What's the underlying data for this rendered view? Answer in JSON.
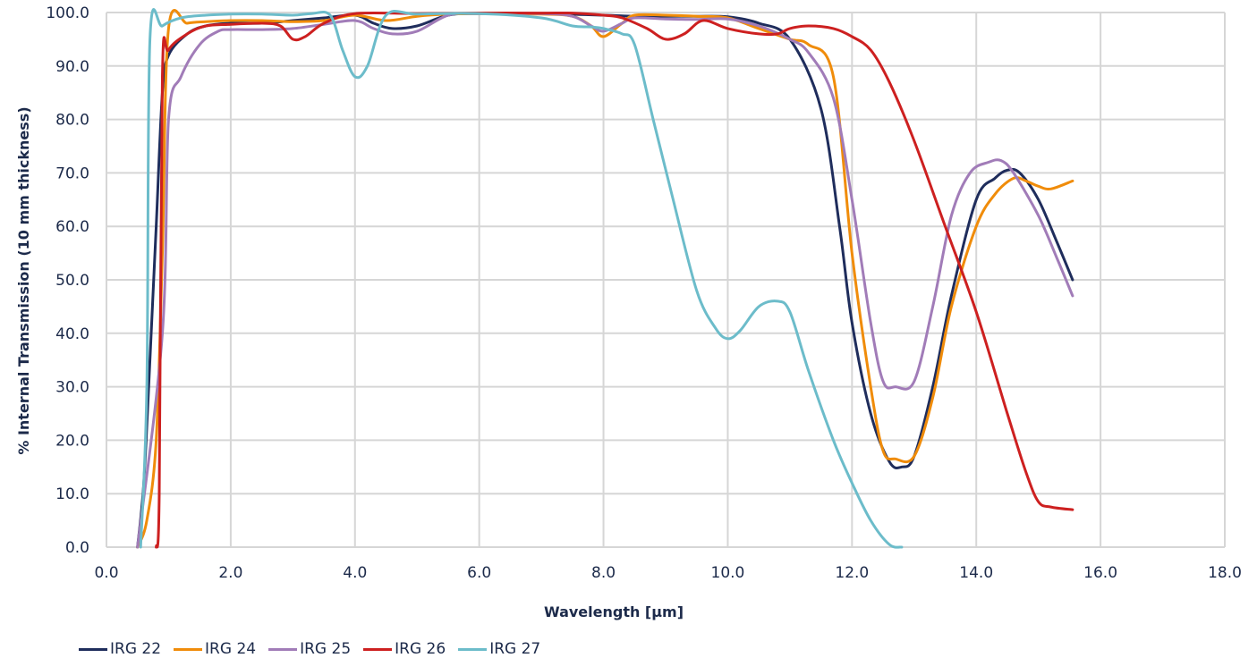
{
  "chart_data": {
    "type": "line",
    "xlabel": "Wavelength [µm]",
    "ylabel": "% Internal Transmission (10 mm thickness)",
    "xlim": [
      0,
      18
    ],
    "ylim": [
      0,
      100
    ],
    "x_ticks": [
      "0.0",
      "2.0",
      "4.0",
      "6.0",
      "8.0",
      "10.0",
      "12.0",
      "14.0",
      "16.0",
      "18.0"
    ],
    "y_ticks": [
      "0.0",
      "10.0",
      "20.0",
      "30.0",
      "40.0",
      "50.0",
      "60.0",
      "70.0",
      "80.0",
      "90.0",
      "100.0"
    ],
    "grid": true,
    "legend_position": "bottom-left",
    "series": [
      {
        "name": "IRG 22",
        "color": "#1f2d5c",
        "points": [
          [
            0.5,
            0
          ],
          [
            0.6,
            12
          ],
          [
            0.7,
            35
          ],
          [
            0.8,
            60
          ],
          [
            0.9,
            85
          ],
          [
            1.0,
            92
          ],
          [
            1.3,
            96
          ],
          [
            1.6,
            97.5
          ],
          [
            2.0,
            98
          ],
          [
            2.5,
            98
          ],
          [
            3.0,
            98.5
          ],
          [
            3.5,
            99
          ],
          [
            4.0,
            99.5
          ],
          [
            4.3,
            98
          ],
          [
            4.6,
            97
          ],
          [
            5.0,
            97.5
          ],
          [
            5.5,
            99.5
          ],
          [
            6.0,
            99.8
          ],
          [
            7.0,
            99.8
          ],
          [
            8.0,
            99.5
          ],
          [
            8.5,
            99.3
          ],
          [
            9.0,
            99.3
          ],
          [
            9.5,
            99.3
          ],
          [
            10.0,
            99.2
          ],
          [
            10.5,
            98
          ],
          [
            11.0,
            95
          ],
          [
            11.5,
            82
          ],
          [
            11.8,
            60
          ],
          [
            12.0,
            42
          ],
          [
            12.3,
            25
          ],
          [
            12.6,
            16
          ],
          [
            12.8,
            15
          ],
          [
            13.0,
            17
          ],
          [
            13.3,
            30
          ],
          [
            13.6,
            47
          ],
          [
            14.0,
            65
          ],
          [
            14.3,
            69
          ],
          [
            14.5,
            70.5
          ],
          [
            14.7,
            70
          ],
          [
            15.0,
            65
          ],
          [
            15.3,
            57
          ],
          [
            15.55,
            50
          ]
        ]
      },
      {
        "name": "IRG 24",
        "color": "#f08c0a",
        "points": [
          [
            0.5,
            0
          ],
          [
            0.65,
            5
          ],
          [
            0.8,
            20
          ],
          [
            0.9,
            55
          ],
          [
            1.0,
            97
          ],
          [
            1.3,
            98
          ],
          [
            1.6,
            98.3
          ],
          [
            2.0,
            98.5
          ],
          [
            2.5,
            98.5
          ],
          [
            3.0,
            98.3
          ],
          [
            3.5,
            98.5
          ],
          [
            4.0,
            99.5
          ],
          [
            4.5,
            98.5
          ],
          [
            5.0,
            99.3
          ],
          [
            5.5,
            99.7
          ],
          [
            6.0,
            99.8
          ],
          [
            7.0,
            99.7
          ],
          [
            7.5,
            99.3
          ],
          [
            7.8,
            97.5
          ],
          [
            8.0,
            95.5
          ],
          [
            8.3,
            98
          ],
          [
            8.5,
            99.5
          ],
          [
            9.0,
            99.5
          ],
          [
            9.5,
            99.3
          ],
          [
            10.0,
            99
          ],
          [
            10.5,
            97
          ],
          [
            11.0,
            95
          ],
          [
            11.3,
            94
          ],
          [
            11.7,
            88
          ],
          [
            12.0,
            55
          ],
          [
            12.3,
            30
          ],
          [
            12.5,
            18
          ],
          [
            12.7,
            16.5
          ],
          [
            13.0,
            17
          ],
          [
            13.3,
            28
          ],
          [
            13.6,
            45
          ],
          [
            14.0,
            60
          ],
          [
            14.3,
            66
          ],
          [
            14.6,
            69
          ],
          [
            14.8,
            68.5
          ],
          [
            15.0,
            67.5
          ],
          [
            15.2,
            67
          ],
          [
            15.55,
            68.5
          ]
        ]
      },
      {
        "name": "IRG 25",
        "color": "#a17cb8",
        "points": [
          [
            0.5,
            0
          ],
          [
            0.9,
            40
          ],
          [
            1.0,
            80
          ],
          [
            1.2,
            88
          ],
          [
            1.5,
            94
          ],
          [
            1.8,
            96.5
          ],
          [
            2.0,
            96.8
          ],
          [
            2.5,
            96.8
          ],
          [
            3.0,
            97
          ],
          [
            3.5,
            97.8
          ],
          [
            4.0,
            98.5
          ],
          [
            4.3,
            97
          ],
          [
            4.6,
            96
          ],
          [
            5.0,
            96.5
          ],
          [
            5.5,
            99.5
          ],
          [
            6.0,
            99.8
          ],
          [
            7.0,
            99.8
          ],
          [
            7.5,
            99.3
          ],
          [
            7.8,
            97.5
          ],
          [
            8.0,
            96.5
          ],
          [
            8.3,
            98
          ],
          [
            8.5,
            99
          ],
          [
            9.0,
            98.8
          ],
          [
            9.5,
            98.7
          ],
          [
            10.0,
            98.8
          ],
          [
            10.5,
            97.5
          ],
          [
            11.0,
            95
          ],
          [
            11.3,
            92.5
          ],
          [
            11.7,
            84
          ],
          [
            12.0,
            65
          ],
          [
            12.3,
            42
          ],
          [
            12.5,
            31
          ],
          [
            12.7,
            30
          ],
          [
            13.0,
            31
          ],
          [
            13.3,
            45
          ],
          [
            13.6,
            62
          ],
          [
            13.9,
            70
          ],
          [
            14.2,
            72
          ],
          [
            14.4,
            72.3
          ],
          [
            14.6,
            70
          ],
          [
            15.0,
            62
          ],
          [
            15.3,
            54
          ],
          [
            15.55,
            47
          ]
        ]
      },
      {
        "name": "IRG 26",
        "color": "#cd2020",
        "points": [
          [
            0.8,
            0
          ],
          [
            0.85,
            10
          ],
          [
            0.9,
            88
          ],
          [
            1.0,
            93
          ],
          [
            1.3,
            96
          ],
          [
            1.6,
            97.5
          ],
          [
            2.0,
            97.8
          ],
          [
            2.5,
            98
          ],
          [
            2.8,
            97.5
          ],
          [
            3.0,
            95
          ],
          [
            3.2,
            95.5
          ],
          [
            3.5,
            98
          ],
          [
            4.0,
            99.8
          ],
          [
            5.0,
            99.8
          ],
          [
            6.0,
            99.9
          ],
          [
            7.0,
            99.9
          ],
          [
            7.5,
            99.9
          ],
          [
            8.0,
            99.5
          ],
          [
            8.3,
            99
          ],
          [
            8.7,
            97
          ],
          [
            9.0,
            95
          ],
          [
            9.3,
            96
          ],
          [
            9.6,
            98.5
          ],
          [
            10.0,
            97
          ],
          [
            10.5,
            96
          ],
          [
            10.8,
            96
          ],
          [
            11.0,
            97
          ],
          [
            11.3,
            97.5
          ],
          [
            11.7,
            97
          ],
          [
            12.0,
            95.5
          ],
          [
            12.3,
            93
          ],
          [
            12.6,
            87
          ],
          [
            13.0,
            76
          ],
          [
            13.5,
            60
          ],
          [
            14.0,
            44
          ],
          [
            14.5,
            25
          ],
          [
            14.8,
            14
          ],
          [
            15.0,
            8.5
          ],
          [
            15.2,
            7.5
          ],
          [
            15.55,
            7
          ]
        ]
      },
      {
        "name": "IRG 27",
        "color": "#6cbcca",
        "points": [
          [
            0.55,
            0
          ],
          [
            0.65,
            30
          ],
          [
            0.7,
            95
          ],
          [
            0.9,
            97.5
          ],
          [
            1.2,
            99
          ],
          [
            1.6,
            99.5
          ],
          [
            2.0,
            99.7
          ],
          [
            2.5,
            99.7
          ],
          [
            3.0,
            99.5
          ],
          [
            3.3,
            99.8
          ],
          [
            3.6,
            99.5
          ],
          [
            3.8,
            93
          ],
          [
            4.0,
            88
          ],
          [
            4.2,
            90
          ],
          [
            4.5,
            99.5
          ],
          [
            5.0,
            99.7
          ],
          [
            6.0,
            99.8
          ],
          [
            7.0,
            99
          ],
          [
            7.5,
            97.5
          ],
          [
            7.8,
            97.3
          ],
          [
            8.0,
            97
          ],
          [
            8.3,
            96
          ],
          [
            8.5,
            94
          ],
          [
            8.8,
            80
          ],
          [
            9.1,
            66
          ],
          [
            9.5,
            48
          ],
          [
            9.8,
            41
          ],
          [
            10.0,
            39
          ],
          [
            10.2,
            40.5
          ],
          [
            10.5,
            45
          ],
          [
            10.8,
            46
          ],
          [
            11.0,
            44
          ],
          [
            11.3,
            33
          ],
          [
            11.7,
            20
          ],
          [
            12.0,
            12
          ],
          [
            12.3,
            5
          ],
          [
            12.6,
            0.5
          ],
          [
            12.8,
            0
          ]
        ]
      }
    ]
  }
}
